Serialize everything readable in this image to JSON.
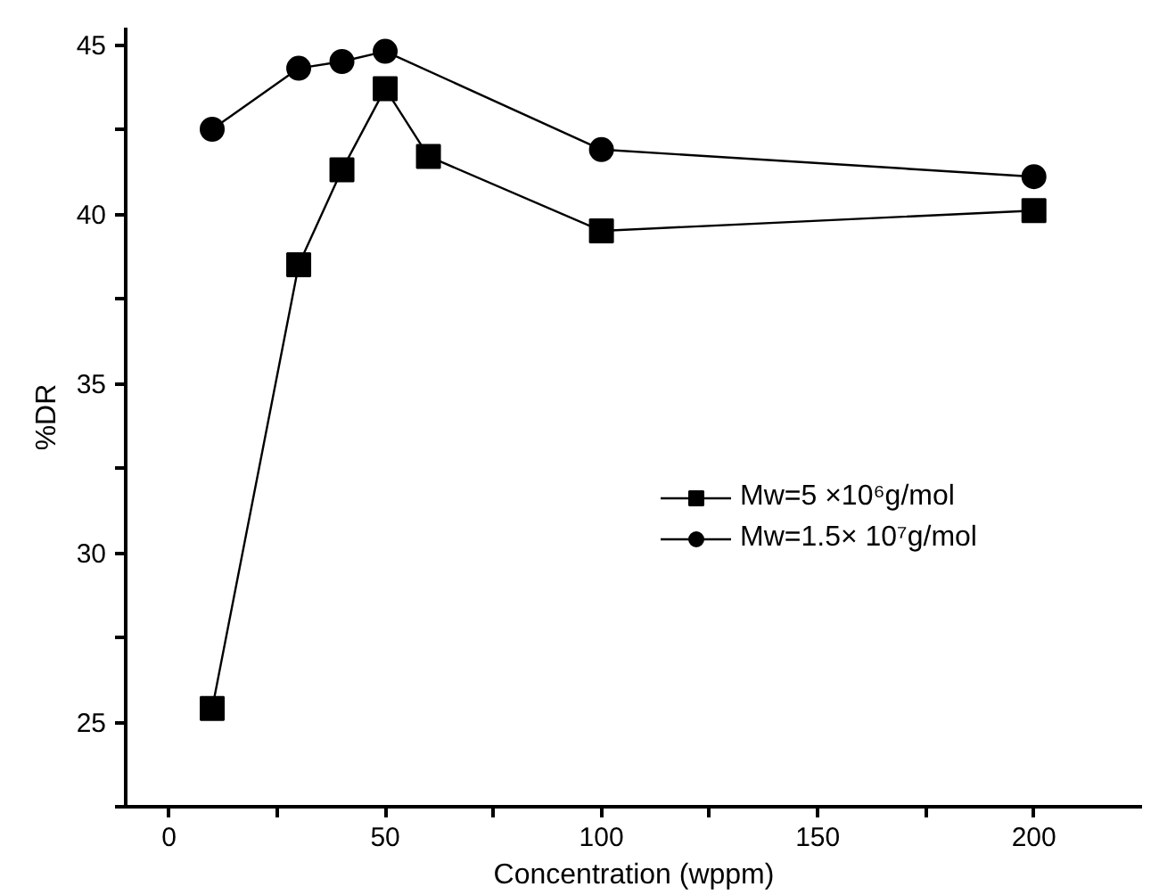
{
  "chart_data": {
    "type": "line",
    "xlabel": "Concentration (wppm)",
    "ylabel": "%DR",
    "x": [
      10,
      30,
      40,
      50,
      60,
      100,
      200
    ],
    "series": [
      {
        "name": "Mw=5 ×10⁶g/mol",
        "color": "#000000",
        "marker": "square",
        "values": [
          25.4,
          38.5,
          41.3,
          43.7,
          41.7,
          39.5,
          40.1
        ]
      },
      {
        "name": "Mw=1.5× 10⁷g/mol",
        "color": "#000000",
        "marker": "circle",
        "x": [
          10,
          30,
          40,
          50,
          100,
          200
        ],
        "values": [
          42.5,
          44.3,
          44.5,
          44.8,
          41.9,
          41.1
        ]
      }
    ],
    "xlim": [
      -10,
      225
    ],
    "ylim": [
      22.5,
      45.5
    ],
    "xticks": [
      0,
      {
        "value": 25,
        "label": null
      },
      50,
      {
        "value": 75,
        "label": null
      },
      100,
      {
        "value": 125,
        "label": null
      },
      150,
      {
        "value": 175,
        "label": null
      },
      200
    ],
    "yticks": [
      {
        "value": 22.5,
        "label": null
      },
      25,
      {
        "value": 27.5,
        "label": null
      },
      30,
      {
        "value": 32.5,
        "label": null
      },
      35,
      {
        "value": 37.5,
        "label": null
      },
      40,
      {
        "value": 42.5,
        "label": null
      },
      45
    ],
    "grid": false,
    "legend": "right",
    "line_style": "solid"
  }
}
